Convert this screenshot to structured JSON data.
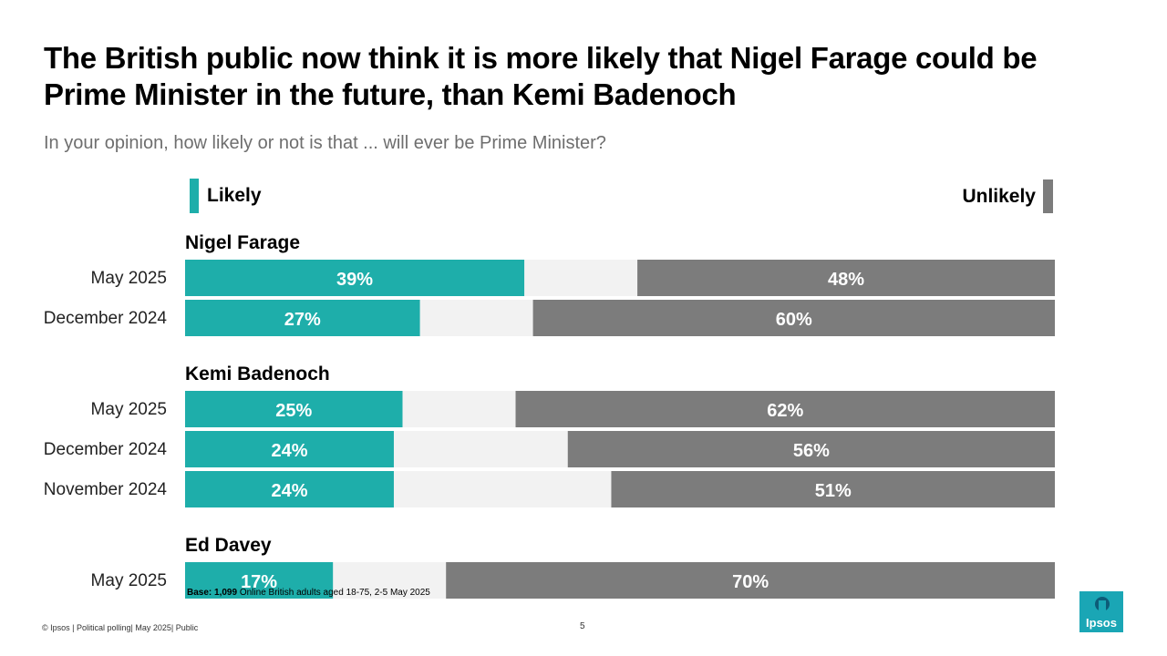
{
  "title": "The British public now think it is more likely that Nigel Farage could be Prime Minister in the future, than Kemi Badenoch",
  "subtitle": "In your opinion, how likely or not is that ... will ever be Prime Minister?",
  "legend": {
    "likely": "Likely",
    "unlikely": "Unlikely"
  },
  "colors": {
    "likely": "#1eaeaa",
    "middle": "#f2f2f2",
    "unlikely": "#7c7c7c"
  },
  "chart_data": {
    "type": "bar",
    "orientation": "horizontal-stacked",
    "xlim": [
      0,
      100
    ],
    "series": [
      {
        "name": "Likely"
      },
      {
        "name": "Unlikely"
      }
    ],
    "groups": [
      {
        "name": "Nigel Farage",
        "rows": [
          {
            "label": "May 2025",
            "likely": 39,
            "unlikely": 48
          },
          {
            "label": "December 2024",
            "likely": 27,
            "unlikely": 60
          }
        ]
      },
      {
        "name": "Kemi Badenoch",
        "rows": [
          {
            "label": "May 2025",
            "likely": 25,
            "unlikely": 62
          },
          {
            "label": "December 2024",
            "likely": 24,
            "unlikely": 56
          },
          {
            "label": "November 2024",
            "likely": 24,
            "unlikely": 51
          }
        ]
      },
      {
        "name": "Ed Davey",
        "rows": [
          {
            "label": "May 2025",
            "likely": 17,
            "unlikely": 70
          }
        ]
      }
    ]
  },
  "base_note": {
    "label": "Base:",
    "count": "1,099",
    "text": "Online British adults aged 18-75, 2-5 May 2025"
  },
  "footer": "© Ipsos | Political polling| May 2025| Public",
  "page_number": "5",
  "logo": {
    "text": "Ipsos",
    "icon": "ipsos-logo-icon"
  }
}
